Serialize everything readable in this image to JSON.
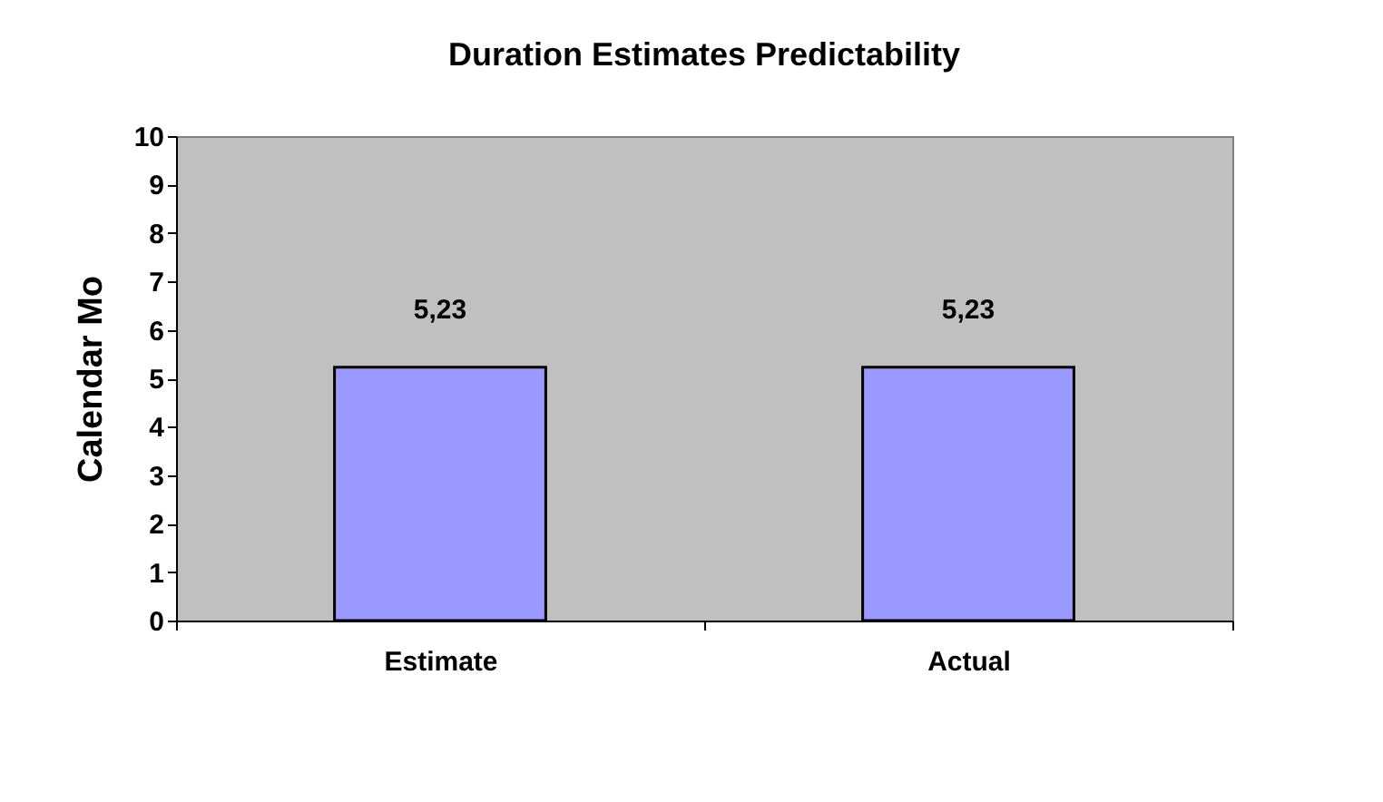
{
  "chart_data": {
    "type": "bar",
    "title": "Duration Estimates Predictability",
    "ylabel": "Calendar Mo",
    "categories": [
      "Estimate",
      "Actual"
    ],
    "values": [
      5.23,
      5.23
    ],
    "color": "#9999ff",
    "value_labels": [
      "5,23",
      "5,23"
    ],
    "ylim": [
      0,
      10
    ],
    "yticks": [
      0,
      1,
      2,
      3,
      4,
      5,
      6,
      7,
      8,
      9,
      10
    ],
    "grid": false
  }
}
